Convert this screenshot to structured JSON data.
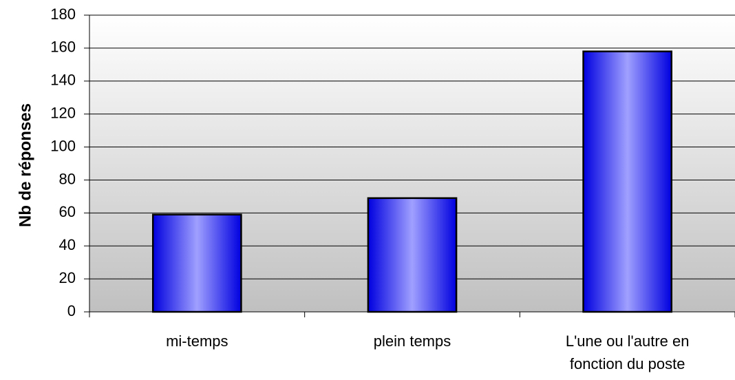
{
  "chart_data": {
    "type": "bar",
    "y_label": "Nb de réponses",
    "categories": [
      "mi-temps",
      "plein temps",
      "L'une ou l'autre en fonction du poste"
    ],
    "values": [
      59,
      69,
      158
    ],
    "color": "#3333ff",
    "ylim": [
      0,
      180
    ],
    "yticks": [
      0,
      20,
      40,
      60,
      80,
      100,
      120,
      140,
      160,
      180
    ],
    "grid": true
  }
}
